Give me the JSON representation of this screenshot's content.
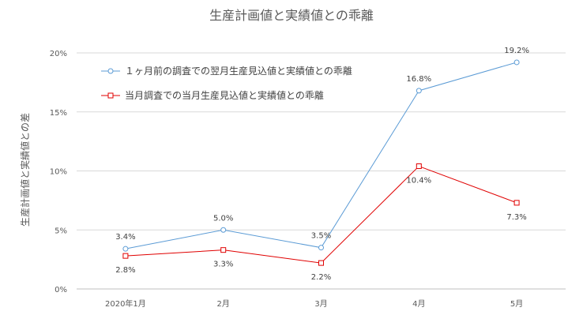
{
  "chart_data": {
    "type": "line",
    "title": "生産計画値と実績値との乖離",
    "xlabel": "",
    "ylabel": "生産計画値と実績値との差",
    "categories": [
      "2020年1月",
      "2月",
      "3月",
      "4月",
      "5月"
    ],
    "ylim": [
      0,
      20
    ],
    "yticks": [
      "0%",
      "5%",
      "10%",
      "15%",
      "20%"
    ],
    "ytick_values": [
      0,
      5,
      10,
      15,
      20
    ],
    "grid": true,
    "legend": "top-left",
    "series": [
      {
        "name": "１ヶ月前の調査での翌月生産見込値と実績値との乖離",
        "values": [
          3.4,
          5.0,
          3.5,
          16.8,
          19.2
        ],
        "labels": [
          "3.4%",
          "5.0%",
          "3.5%",
          "16.8%",
          "19.2%"
        ],
        "color": "#5b9bd5",
        "marker": "circle",
        "label_position": "above"
      },
      {
        "name": "当月調査での当月生産見込値と実績値との乖離",
        "values": [
          2.8,
          3.3,
          2.2,
          10.4,
          7.3
        ],
        "labels": [
          "2.8%",
          "3.3%",
          "2.2%",
          "10.4%",
          "7.3%"
        ],
        "color": "#e00000",
        "marker": "square",
        "label_position": "below"
      }
    ]
  }
}
